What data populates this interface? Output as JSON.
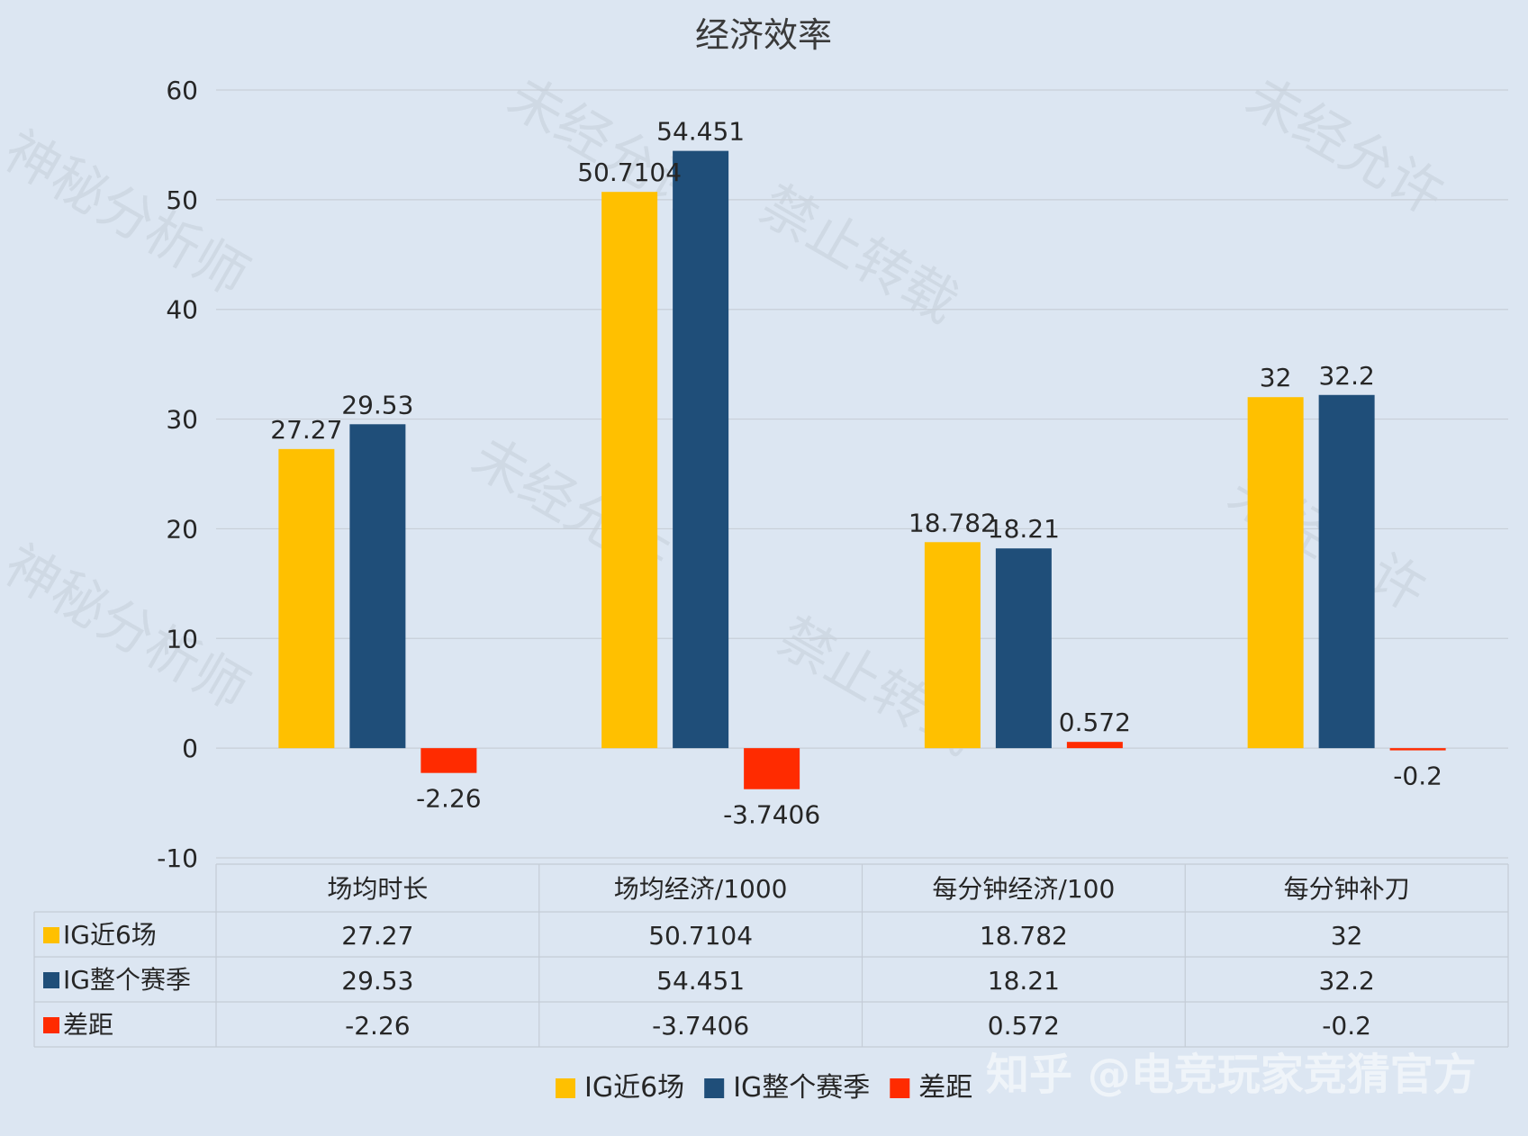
{
  "chart_data": {
    "type": "bar",
    "title": "经济效率",
    "categories": [
      "场均时长",
      "场均经济/1000",
      "每分钟经济/100",
      "每分钟补刀"
    ],
    "series": [
      {
        "name": "IG近6场",
        "color": "#ffc000",
        "values": [
          27.27,
          50.7104,
          18.782,
          32
        ],
        "labels": [
          "27.27",
          "50.7104",
          "18.782",
          "32"
        ]
      },
      {
        "name": "IG整个赛季",
        "color": "#1f4e79",
        "values": [
          29.53,
          54.451,
          18.21,
          32.2
        ],
        "labels": [
          "29.53",
          "54.451",
          "18.21",
          "32.2"
        ]
      },
      {
        "name": "差距",
        "color": "#ff2b00",
        "values": [
          -2.26,
          -3.7406,
          0.572,
          -0.2
        ],
        "labels": [
          "-2.26",
          "-3.7406",
          "0.572",
          "-0.2"
        ]
      }
    ],
    "ylim": [
      -10,
      60
    ],
    "yticks": [
      60,
      50,
      40,
      30,
      20,
      10,
      0,
      -10
    ],
    "grid": true,
    "legend": "bottom",
    "data_table": true
  },
  "watermark": {
    "footer": "知乎 @电竞玩家竞猜官方"
  }
}
